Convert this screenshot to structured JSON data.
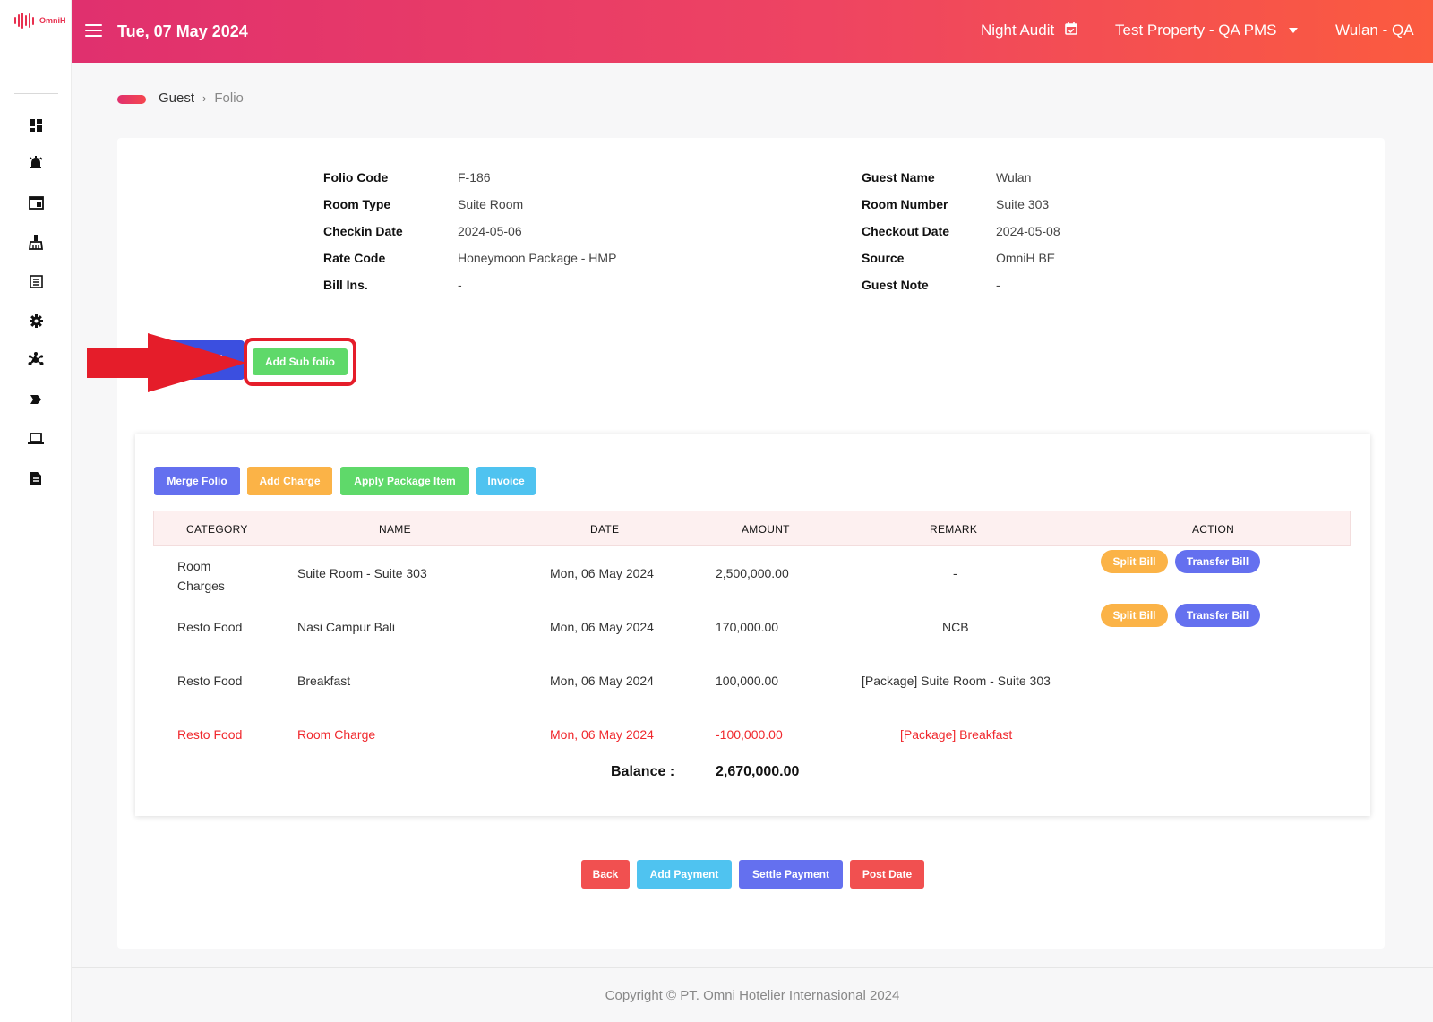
{
  "app": {
    "logo_text": "OmniH"
  },
  "header": {
    "date": "Tue, 07 May 2024",
    "night_audit": "Night Audit",
    "property": "Test Property - QA PMS",
    "user": "Wulan - QA"
  },
  "sidebar": {
    "icons": [
      "dashboard-icon",
      "alarm-icon",
      "window-icon",
      "cleaning-icon",
      "list-icon",
      "gear-icon",
      "network-icon",
      "chevron-right-icon",
      "laptop-icon",
      "report-icon"
    ]
  },
  "breadcrumb": {
    "parent": "Guest",
    "separator": "›",
    "current": "Folio"
  },
  "folio_info": {
    "left": [
      {
        "label": "Folio Code",
        "value": "F-186"
      },
      {
        "label": "Room Type",
        "value": "Suite Room"
      },
      {
        "label": "Checkin Date",
        "value": "2024-05-06"
      },
      {
        "label": "Rate Code",
        "value": "Honeymoon Package - HMP"
      },
      {
        "label": "Bill Ins.",
        "value": "-"
      }
    ],
    "right": [
      {
        "label": "Guest Name",
        "value": "Wulan"
      },
      {
        "label": "Room Number",
        "value": "Suite 303"
      },
      {
        "label": "Checkout Date",
        "value": "2024-05-08"
      },
      {
        "label": "Source",
        "value": "OmniH BE"
      },
      {
        "label": "Guest Note",
        "value": "-"
      }
    ]
  },
  "folio_tabs": {
    "folio": "lio",
    "add_sub_folio": "Add Sub folio"
  },
  "toolbar": {
    "merge_folio": "Merge Folio",
    "add_charge": "Add Charge",
    "apply_package_item": "Apply Package Item",
    "invoice": "Invoice"
  },
  "table": {
    "columns": [
      "CATEGORY",
      "NAME",
      "DATE",
      "AMOUNT",
      "REMARK",
      "ACTION"
    ],
    "rows": [
      {
        "category": "Room Charges",
        "name": "Suite Room - Suite 303",
        "date": "Mon, 06 May 2024",
        "amount": "2,500,000.00",
        "remark": "-",
        "actions": [
          "Split Bill",
          "Transfer Bill"
        ]
      },
      {
        "category": "Resto Food",
        "name": "Nasi Campur Bali",
        "date": "Mon, 06 May 2024",
        "amount": "170,000.00",
        "remark": "NCB",
        "actions": [
          "Split Bill",
          "Transfer Bill"
        ]
      },
      {
        "category": "Resto Food",
        "name": "Breakfast",
        "date": "Mon, 06 May 2024",
        "amount": "100,000.00",
        "remark": "[Package] Suite Room - Suite 303",
        "actions": []
      },
      {
        "category": "Resto Food",
        "name": "Room Charge",
        "date": "Mon, 06 May 2024",
        "amount": "-100,000.00",
        "remark": "[Package] Breakfast",
        "actions": []
      }
    ],
    "balance_label": "Balance :",
    "balance_value": "2,670,000.00"
  },
  "footer_buttons": {
    "back": "Back",
    "add_payment": "Add Payment",
    "settle_payment": "Settle Payment",
    "post_date": "Post Date"
  },
  "footer": {
    "copyright": "Copyright © PT. Omni Hotelier Internasional 2024"
  },
  "colors": {
    "header_start": "#e0306e",
    "header_end": "#fb5b3f",
    "primary": "#6470ef",
    "success": "#5fd96a",
    "warning": "#fbb347",
    "info": "#4fc3f0",
    "danger": "#f15050",
    "annotation_red": "#e51d2a"
  }
}
